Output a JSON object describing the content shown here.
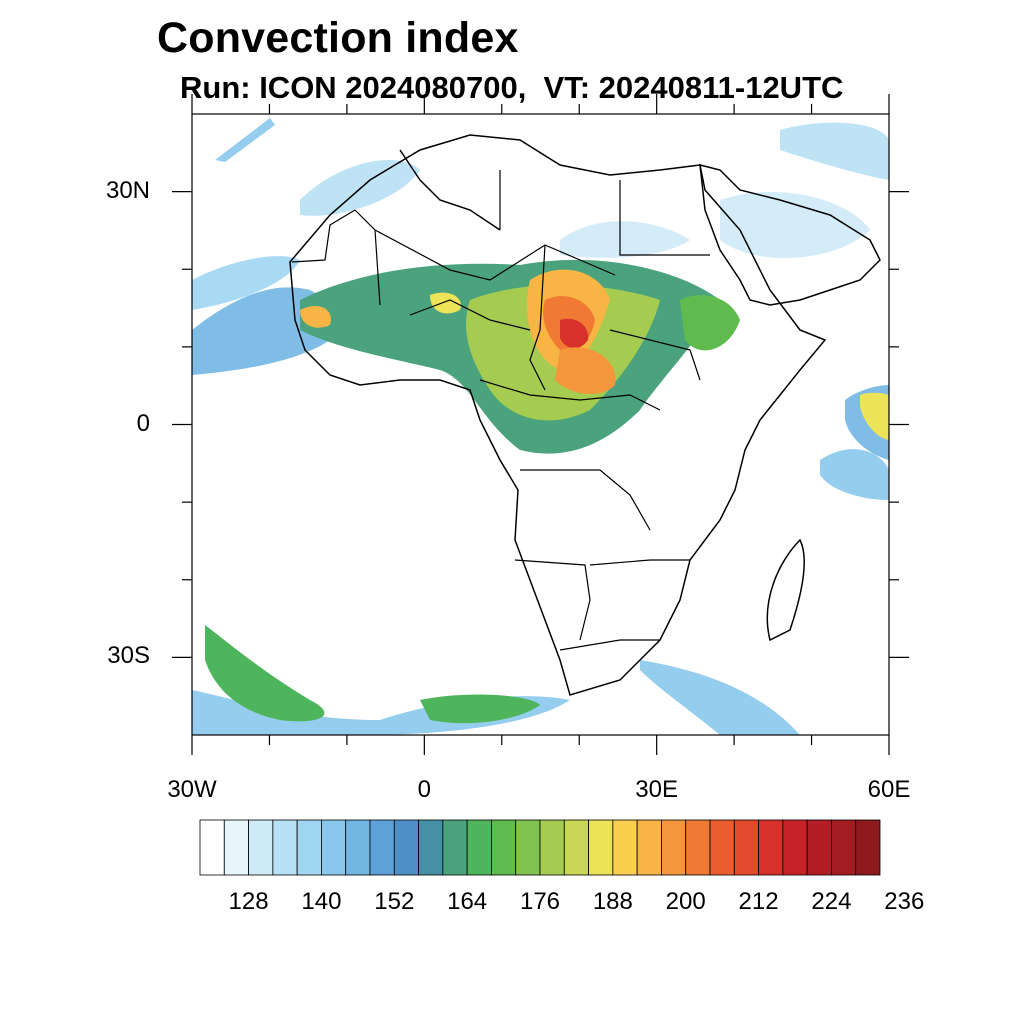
{
  "title": "Convection index",
  "subtitle": "Run: ICON 2024080700,  VT: 20240811-12UTC",
  "map": {
    "extent": {
      "lon_min": -30,
      "lon_max": 60,
      "lat_min": -40,
      "lat_max": 40
    },
    "lat_ticks": [
      {
        "value": 30,
        "label": "30N"
      },
      {
        "value": 0,
        "label": "0"
      },
      {
        "value": -30,
        "label": "30S"
      }
    ],
    "lon_ticks": [
      {
        "value": -30,
        "label": "30W"
      },
      {
        "value": 0,
        "label": "0"
      },
      {
        "value": 30,
        "label": "30E"
      },
      {
        "value": 60,
        "label": "60E"
      }
    ]
  },
  "colorbar": {
    "colors": [
      "#ffffff",
      "#e8f5fb",
      "#cfeaf7",
      "#b8e0f5",
      "#a0d6f2",
      "#89c8ec",
      "#72b6e4",
      "#5da1d8",
      "#4f8fc6",
      "#4590a5",
      "#4aa37d",
      "#4fb55c",
      "#5fbb4d",
      "#80c34e",
      "#a5cc50",
      "#c8d755",
      "#ece358",
      "#f9cf50",
      "#f8b445",
      "#f5963c",
      "#f07a33",
      "#ea5e2d",
      "#e24a2b",
      "#d8302a",
      "#c62228",
      "#b31d26",
      "#a31c22",
      "#8e1a1e"
    ],
    "labels": [
      "128",
      "140",
      "152",
      "164",
      "176",
      "188",
      "200",
      "212",
      "224",
      "236"
    ]
  }
}
